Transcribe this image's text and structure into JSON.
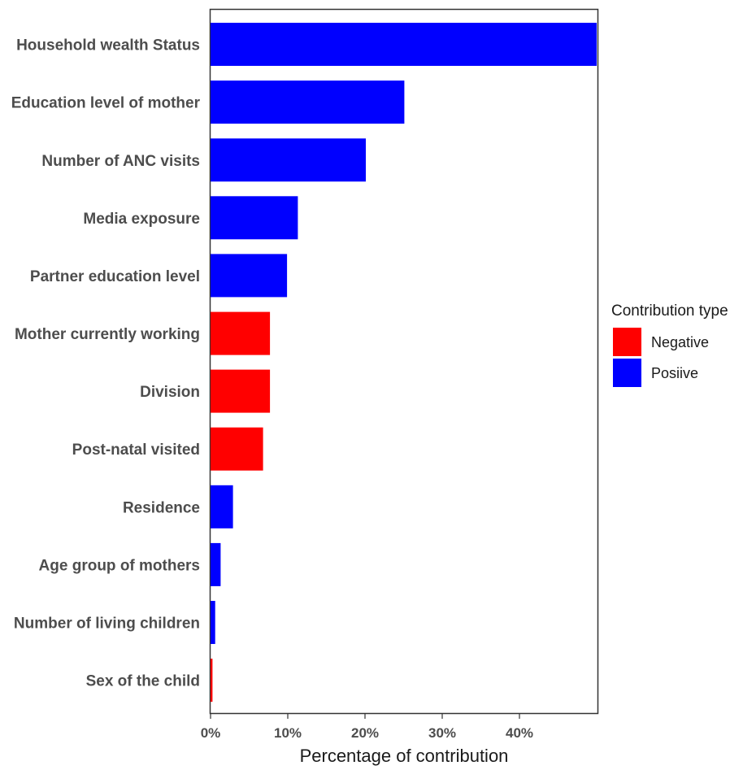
{
  "chart_data": {
    "type": "bar",
    "orientation": "horizontal",
    "xlabel": "Percentage of contribution",
    "ylabel": "",
    "xlim": [
      0,
      50
    ],
    "x_ticks": [
      {
        "value": 0,
        "label": "0%"
      },
      {
        "value": 10,
        "label": "10%"
      },
      {
        "value": 20,
        "label": "20%"
      },
      {
        "value": 30,
        "label": "30%"
      },
      {
        "value": 40,
        "label": "40%"
      }
    ],
    "grid": false,
    "legend": {
      "title": "Contribution type",
      "position": "right",
      "entries": [
        {
          "label": "Negative",
          "color": "#ff0000",
          "key": "negative"
        },
        {
          "label": "Posiive",
          "color": "#0000ff",
          "key": "positive"
        }
      ]
    },
    "bars": [
      {
        "category": "Household wealth Status",
        "value": 50.0,
        "type": "positive"
      },
      {
        "category": "Education level of mother",
        "value": 25.1,
        "type": "positive"
      },
      {
        "category": "Number of ANC visits",
        "value": 20.1,
        "type": "positive"
      },
      {
        "category": "Media exposure",
        "value": 11.3,
        "type": "positive"
      },
      {
        "category": "Partner education level",
        "value": 9.9,
        "type": "positive"
      },
      {
        "category": "Mother currently working",
        "value": 7.7,
        "type": "negative"
      },
      {
        "category": "Division",
        "value": 7.7,
        "type": "negative"
      },
      {
        "category": "Post-natal visited",
        "value": 6.8,
        "type": "negative"
      },
      {
        "category": "Residence",
        "value": 2.9,
        "type": "positive"
      },
      {
        "category": "Age group of mothers",
        "value": 1.3,
        "type": "positive"
      },
      {
        "category": "Number of living children",
        "value": 0.6,
        "type": "positive"
      },
      {
        "category": "Sex of the child",
        "value": 0.25,
        "type": "negative"
      }
    ]
  }
}
